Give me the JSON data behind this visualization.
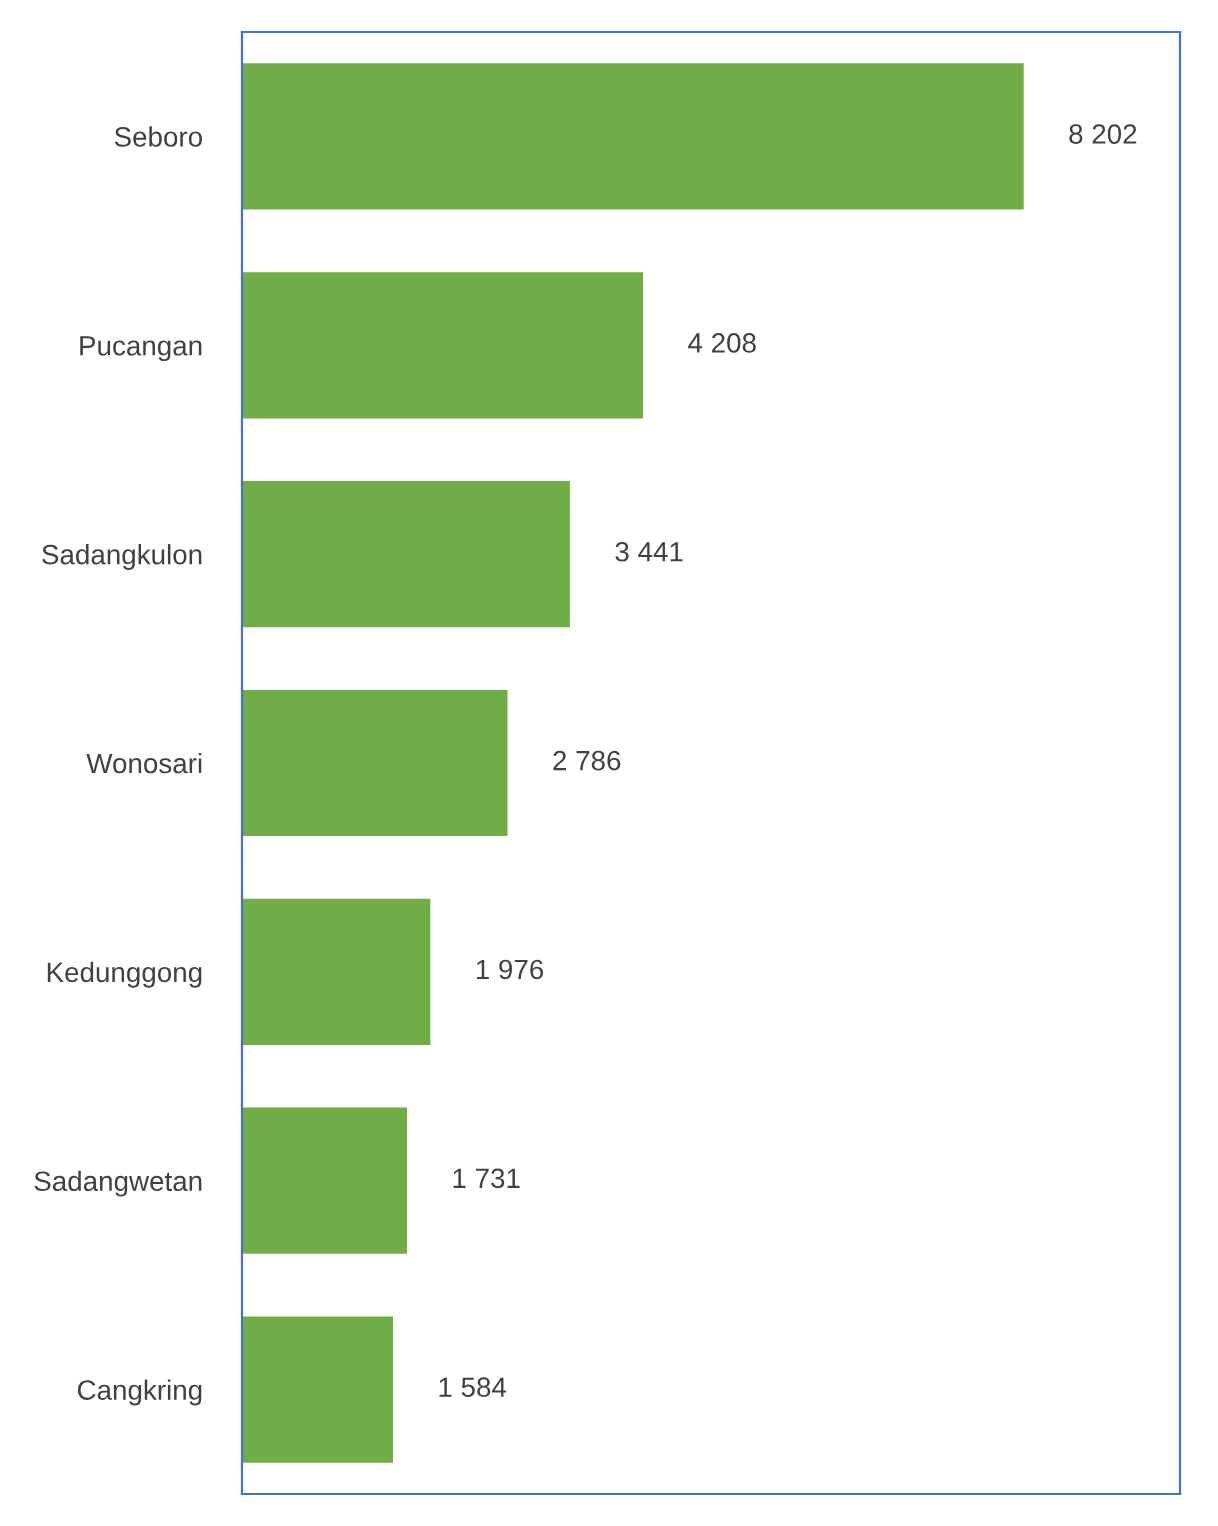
{
  "chart_data": {
    "type": "bar",
    "orientation": "horizontal",
    "categories": [
      "Seboro",
      "Pucangan",
      "Sadangkulon",
      "Wonosari",
      "Kedunggong",
      "Sadangwetan",
      "Cangkring"
    ],
    "values": [
      8202,
      4208,
      3441,
      2786,
      1976,
      1731,
      1584
    ],
    "value_labels": [
      "8 202",
      "4 208",
      "3 441",
      "2 786",
      "1 976",
      "1 731",
      "1 584"
    ],
    "color": "#70ad47",
    "grid": false,
    "legend": false
  }
}
